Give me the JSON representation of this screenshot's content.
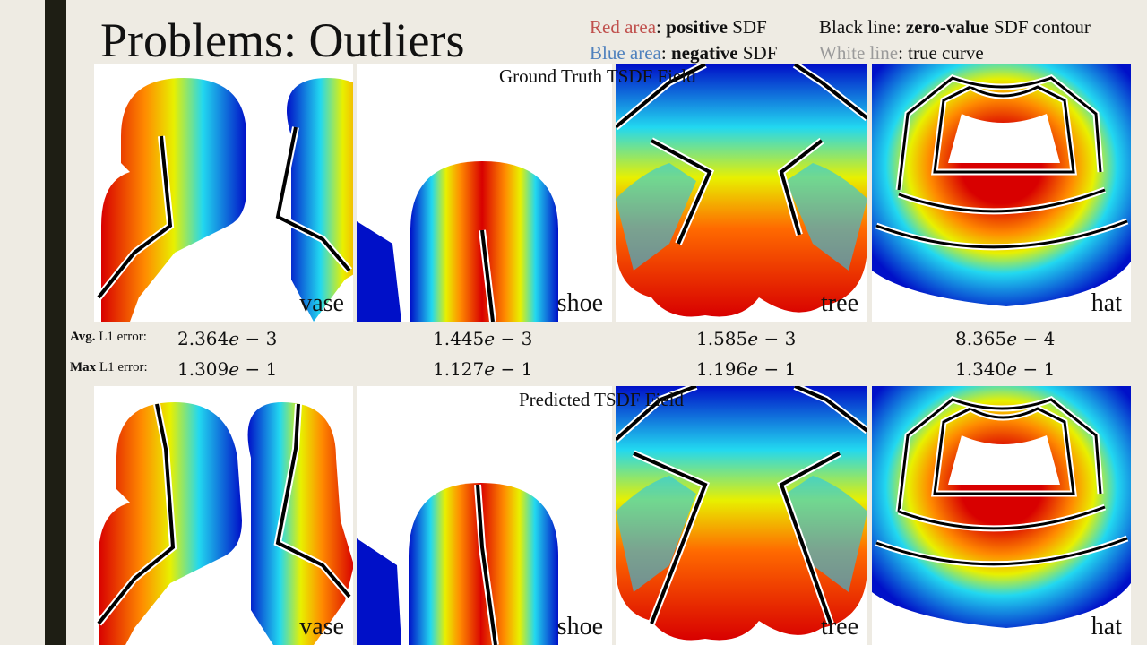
{
  "slide": {
    "title": "Problems: Outliers",
    "legend": {
      "red_key": "Red area",
      "red_sep": ":",
      "red_bold": "positive",
      "red_tail": "SDF",
      "blue_key": "Blue area",
      "blue_sep": ":",
      "blue_bold": "negative",
      "blue_tail": "SDF",
      "black_head": "Black line:",
      "black_bold": "zero-value",
      "black_tail": "SDF contour",
      "white_key": "White line",
      "white_tail": ": true curve"
    },
    "ground_truth_label": "Ground Truth TSDF Field",
    "predicted_label": "Predicted TSDF Field",
    "shapes": [
      "vase",
      "shoe",
      "tree",
      "hat"
    ],
    "avg_label_bold": "Avg.",
    "avg_label_rest": "L1 error:",
    "max_label_bold": "Max",
    "max_label_rest": "L1 error:",
    "avg_errors": [
      {
        "mantissa": "2.364",
        "exp": "3"
      },
      {
        "mantissa": "1.445",
        "exp": "3"
      },
      {
        "mantissa": "1.585",
        "exp": "3"
      },
      {
        "mantissa": "8.365",
        "exp": "4"
      }
    ],
    "max_errors": [
      {
        "mantissa": "1.309",
        "exp": "1"
      },
      {
        "mantissa": "1.127",
        "exp": "1"
      },
      {
        "mantissa": "1.196",
        "exp": "1"
      },
      {
        "mantissa": "1.340",
        "exp": "1"
      }
    ],
    "colors": {
      "positive": "#e01010",
      "negative": "#0018d0",
      "zero": "#000000",
      "true_curve": "#ffffff"
    }
  }
}
